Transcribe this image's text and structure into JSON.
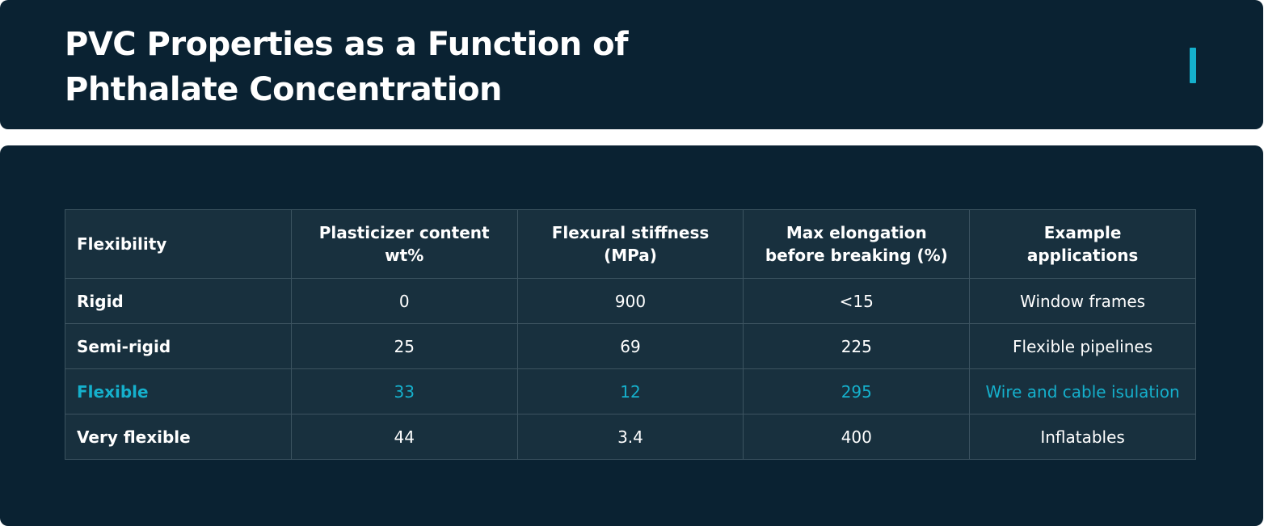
{
  "header": {
    "title_line1": "PVC Properties as a Function of",
    "title_line2": "Phthalate Concentration"
  },
  "colors": {
    "background": "#0a2232",
    "table_background": "#18303e",
    "accent": "#15b0cc",
    "text": "#ffffff"
  },
  "table": {
    "columns": [
      {
        "line1": "Flexibility",
        "line2": ""
      },
      {
        "line1": "Plasticizer content",
        "line2": "wt%"
      },
      {
        "line1": "Flexural stiffness",
        "line2": "(MPa)"
      },
      {
        "line1": "Max elongation",
        "line2": "before breaking (%)"
      },
      {
        "line1": "Example",
        "line2": "applications"
      }
    ],
    "rows": [
      {
        "flexibility": "Rigid",
        "plasticizer": "0",
        "stiffness": "900",
        "elongation": "<15",
        "application": "Window frames"
      },
      {
        "flexibility": "Semi-rigid",
        "plasticizer": "25",
        "stiffness": "69",
        "elongation": "225",
        "application": "Flexible pipelines"
      },
      {
        "flexibility": "Flexible",
        "plasticizer": "33",
        "stiffness": "12",
        "elongation": "295",
        "application": "Wire and cable isulation"
      },
      {
        "flexibility": "Very flexible",
        "plasticizer": "44",
        "stiffness": "3.4",
        "elongation": "400",
        "application": "Inflatables"
      }
    ],
    "highlighted_row": "Flexible"
  }
}
